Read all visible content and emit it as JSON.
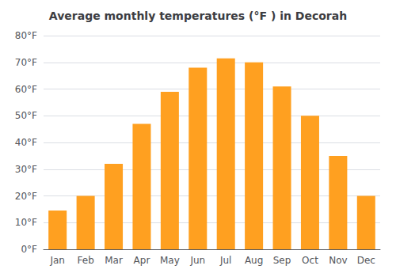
{
  "chart_data": {
    "type": "bar",
    "title": "Average monthly temperatures (°F ) in Decorah",
    "categories": [
      "Jan",
      "Feb",
      "Mar",
      "Apr",
      "May",
      "Jun",
      "Jul",
      "Aug",
      "Sep",
      "Oct",
      "Nov",
      "Dec"
    ],
    "values": [
      14.5,
      20,
      32,
      47,
      59,
      68,
      71.5,
      70,
      61,
      50,
      35,
      20
    ],
    "color": "#FFA020",
    "ylim": [
      0,
      80
    ],
    "yticks": [
      {
        "value": 0,
        "label": "0°F"
      },
      {
        "value": 10,
        "label": "10°F"
      },
      {
        "value": 20,
        "label": "20°F"
      },
      {
        "value": 30,
        "label": "30°F"
      },
      {
        "value": 40,
        "label": "40°F"
      },
      {
        "value": 50,
        "label": "50°F"
      },
      {
        "value": 60,
        "label": "60°F"
      },
      {
        "value": 70,
        "label": "70°F"
      },
      {
        "value": 80,
        "label": "80°F"
      }
    ],
    "grid": true
  }
}
